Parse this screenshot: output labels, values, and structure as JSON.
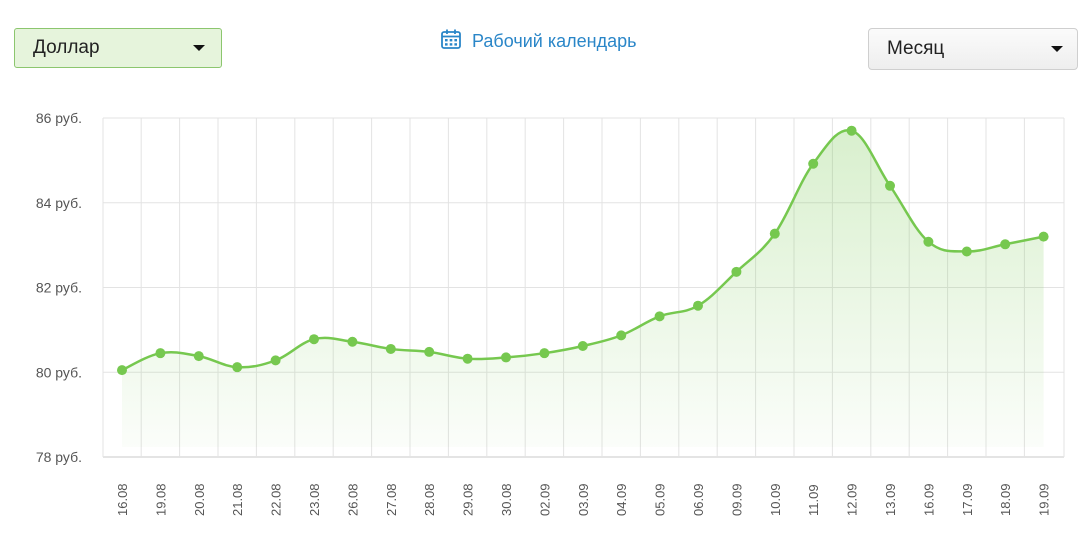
{
  "controls": {
    "currency": "Доллар",
    "period": "Месяц",
    "calendar_link": "Рабочий календарь"
  },
  "colors": {
    "line": "#76c84f",
    "marker": "#76c84f",
    "grid": "#e3e3e3",
    "link": "#2a86c8"
  },
  "icons": {
    "calendar": "calendar-icon",
    "dropdown": "chevron-down-icon"
  },
  "chart_data": {
    "type": "area",
    "categories": [
      "16.08",
      "19.08",
      "20.08",
      "21.08",
      "22.08",
      "23.08",
      "26.08",
      "27.08",
      "28.08",
      "29.08",
      "30.08",
      "02.09",
      "03.09",
      "04.09",
      "05.09",
      "06.09",
      "09.09",
      "10.09",
      "11.09",
      "12.09",
      "13.09",
      "16.09",
      "17.09",
      "18.09",
      "19.09"
    ],
    "values": [
      80.05,
      80.45,
      80.38,
      80.12,
      80.28,
      80.78,
      80.72,
      80.55,
      80.48,
      80.32,
      80.35,
      80.45,
      80.62,
      80.87,
      81.32,
      81.57,
      82.37,
      83.27,
      84.92,
      85.7,
      84.4,
      83.08,
      82.85,
      83.02,
      83.2
    ],
    "yticks": [
      "78 руб.",
      "80 руб.",
      "82 руб.",
      "84 руб.",
      "86 руб."
    ],
    "ylim": [
      78,
      86
    ],
    "grid": true,
    "legend": "none"
  }
}
